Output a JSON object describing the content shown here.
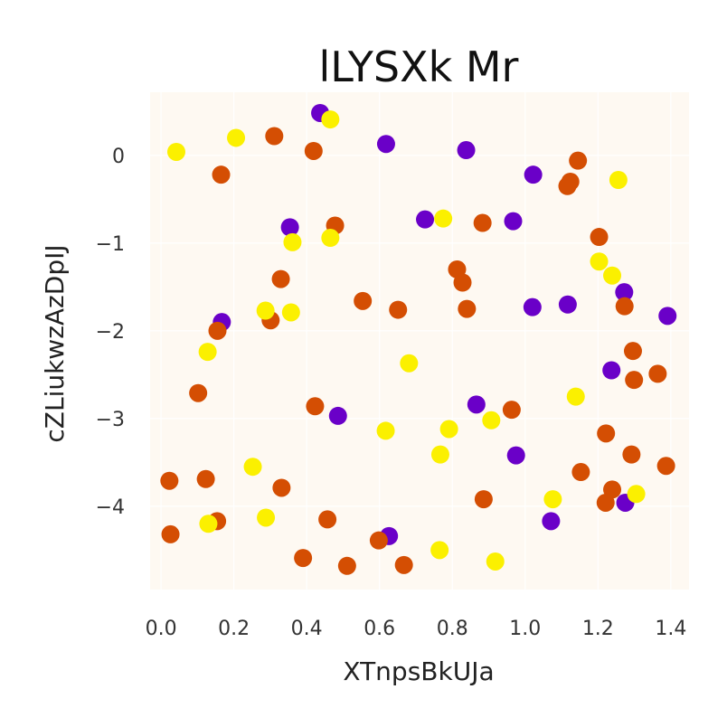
{
  "chart_data": {
    "type": "scatter",
    "title": "lLYSXk Mr",
    "xlabel": "XTnpsBkUJa",
    "ylabel": "cZLiukwzAzDpIJ",
    "xlim": [
      -0.03,
      1.45
    ],
    "ylim": [
      -4.95,
      0.72
    ],
    "xticks": [
      0.0,
      0.2,
      0.4,
      0.6,
      0.8,
      1.0,
      1.2,
      1.4
    ],
    "xtick_labels": [
      "0.0",
      "0.2",
      "0.4",
      "0.6",
      "0.8",
      "1.0",
      "1.2",
      "1.4"
    ],
    "yticks": [
      0,
      -1,
      -2,
      -3,
      -4
    ],
    "ytick_labels": [
      "0",
      "−1",
      "−2",
      "−3",
      "−4"
    ],
    "grid": true,
    "plot_background": "#fef9f2",
    "series": [
      {
        "color": "#6a00c8",
        "points": [
          [
            0.437,
            0.483
          ],
          [
            0.618,
            0.13
          ],
          [
            0.838,
            0.06
          ],
          [
            1.022,
            -0.22
          ],
          [
            0.354,
            -0.82
          ],
          [
            0.725,
            -0.73
          ],
          [
            0.967,
            -0.75
          ],
          [
            0.167,
            -1.9
          ],
          [
            1.272,
            -1.56
          ],
          [
            1.02,
            -1.73
          ],
          [
            1.117,
            -1.7
          ],
          [
            1.391,
            -1.83
          ],
          [
            1.237,
            -2.45
          ],
          [
            0.866,
            -2.84
          ],
          [
            0.486,
            -2.97
          ],
          [
            0.975,
            -3.42
          ],
          [
            0.626,
            -4.34
          ],
          [
            1.071,
            -4.17
          ],
          [
            1.275,
            -3.96
          ]
        ]
      },
      {
        "color": "#d44e03",
        "points": [
          [
            0.311,
            0.22
          ],
          [
            0.419,
            0.05
          ],
          [
            0.165,
            -0.22
          ],
          [
            1.145,
            -0.06
          ],
          [
            1.124,
            -0.3
          ],
          [
            1.116,
            -0.35
          ],
          [
            0.478,
            -0.8
          ],
          [
            0.883,
            -0.77
          ],
          [
            1.203,
            -0.93
          ],
          [
            0.813,
            -1.3
          ],
          [
            0.828,
            -1.45
          ],
          [
            0.329,
            -1.41
          ],
          [
            0.554,
            -1.66
          ],
          [
            0.651,
            -1.76
          ],
          [
            0.84,
            -1.75
          ],
          [
            1.273,
            -1.72
          ],
          [
            0.155,
            -2.0
          ],
          [
            0.301,
            -1.88
          ],
          [
            1.296,
            -2.23
          ],
          [
            0.102,
            -2.71
          ],
          [
            1.364,
            -2.49
          ],
          [
            1.299,
            -2.56
          ],
          [
            0.423,
            -2.86
          ],
          [
            0.963,
            -2.9
          ],
          [
            1.222,
            -3.17
          ],
          [
            1.292,
            -3.41
          ],
          [
            0.023,
            -3.71
          ],
          [
            0.123,
            -3.69
          ],
          [
            0.331,
            -3.79
          ],
          [
            1.153,
            -3.61
          ],
          [
            1.387,
            -3.54
          ],
          [
            0.886,
            -3.92
          ],
          [
            1.221,
            -3.96
          ],
          [
            1.239,
            -3.81
          ],
          [
            0.154,
            -4.17
          ],
          [
            0.457,
            -4.15
          ],
          [
            0.026,
            -4.32
          ],
          [
            0.39,
            -4.59
          ],
          [
            0.598,
            -4.39
          ],
          [
            0.511,
            -4.68
          ],
          [
            0.667,
            -4.67
          ]
        ]
      },
      {
        "color": "#fbf000",
        "points": [
          [
            0.042,
            0.04
          ],
          [
            0.206,
            0.2
          ],
          [
            0.465,
            0.41
          ],
          [
            1.256,
            -0.28
          ],
          [
            0.465,
            -0.94
          ],
          [
            0.361,
            -0.99
          ],
          [
            0.775,
            -0.72
          ],
          [
            1.203,
            -1.21
          ],
          [
            1.239,
            -1.37
          ],
          [
            0.287,
            -1.77
          ],
          [
            0.357,
            -1.79
          ],
          [
            0.128,
            -2.24
          ],
          [
            0.681,
            -2.37
          ],
          [
            1.139,
            -2.75
          ],
          [
            0.617,
            -3.14
          ],
          [
            0.791,
            -3.12
          ],
          [
            0.907,
            -3.02
          ],
          [
            0.767,
            -3.41
          ],
          [
            0.252,
            -3.55
          ],
          [
            1.076,
            -3.92
          ],
          [
            1.305,
            -3.86
          ],
          [
            0.13,
            -4.2
          ],
          [
            0.288,
            -4.13
          ],
          [
            0.765,
            -4.5
          ],
          [
            0.918,
            -4.63
          ]
        ]
      }
    ]
  }
}
